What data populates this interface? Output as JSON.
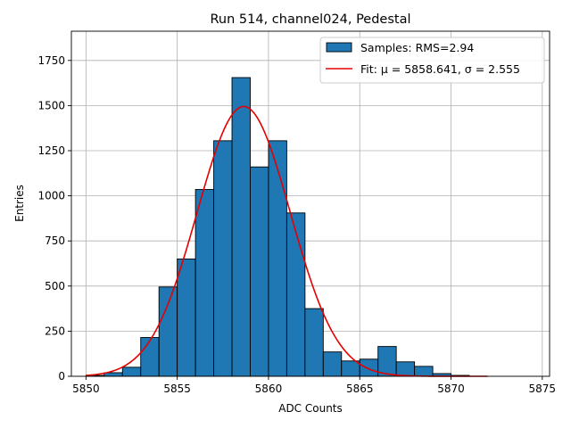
{
  "chart_data": {
    "type": "bar",
    "title": "Run 514, channel024, Pedestal",
    "xlabel": "ADC Counts",
    "ylabel": "Entries",
    "xlim": [
      5849.2,
      5875.4
    ],
    "ylim": [
      0,
      1912
    ],
    "xticks": [
      5850,
      5855,
      5860,
      5865,
      5870,
      5875
    ],
    "yticks": [
      0,
      250,
      500,
      750,
      1000,
      1250,
      1500,
      1750
    ],
    "grid": true,
    "legend_position": "top-right",
    "bin_width": 1,
    "bin_edges_start": 5850,
    "series": [
      {
        "name": "Samples: RMS=2.94",
        "kind": "histogram",
        "color": "#1f77b4",
        "edgecolor": "#000000",
        "values": [
          5,
          20,
          50,
          215,
          495,
          650,
          1035,
          1305,
          1655,
          1160,
          1305,
          905,
          375,
          135,
          85,
          95,
          165,
          80,
          55,
          15,
          5
        ]
      },
      {
        "name": "Fit: μ = 5858.641, σ = 2.555",
        "kind": "gaussian-fit",
        "color": "#e50000",
        "mu": 5858.641,
        "sigma": 2.555,
        "amplitude": 1495,
        "x_range": [
          5850,
          5872
        ]
      }
    ]
  }
}
